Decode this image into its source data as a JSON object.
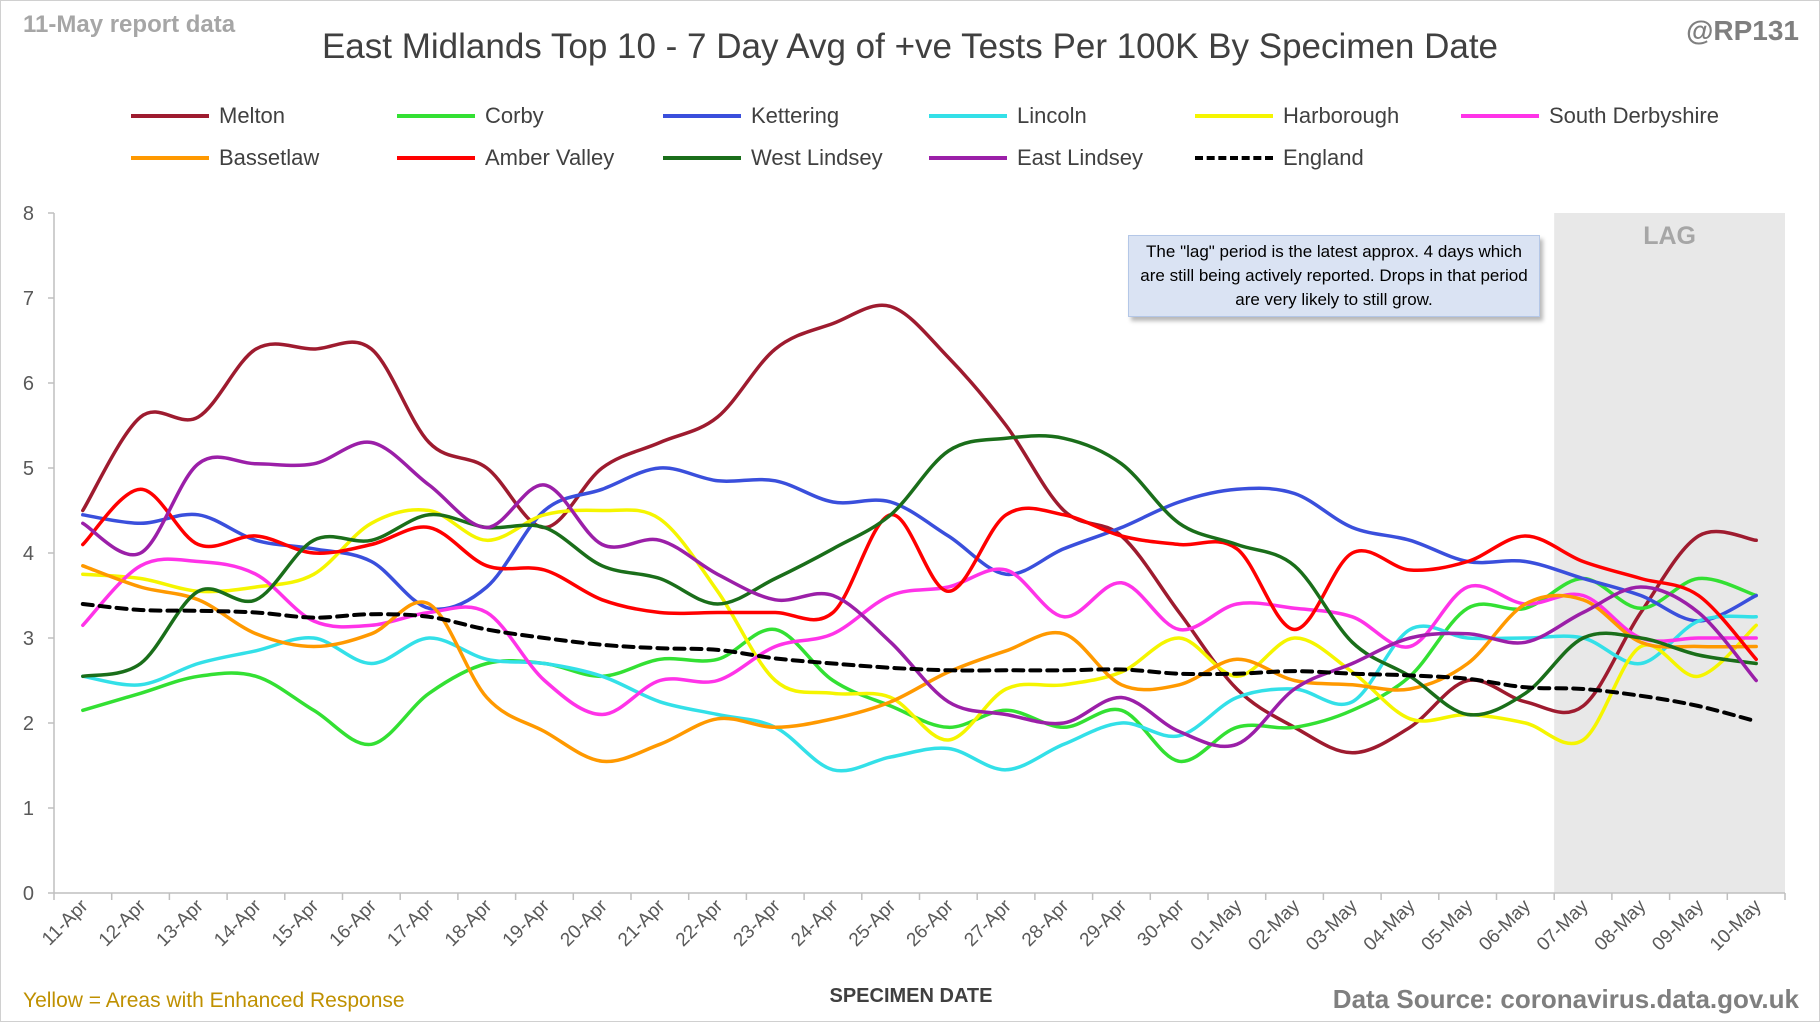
{
  "header": {
    "report_note": "11-May report data",
    "handle": "@RP131",
    "title": "East Midlands Top 10 - 7 Day Avg of +ve Tests Per 100K By Specimen Date"
  },
  "footer": {
    "enhanced_note": "Yellow = Areas with Enhanced Response",
    "source": "Data Source: coronavirus.data.gov.uk"
  },
  "annotation": {
    "text": "The \"lag\" period is the latest approx. 4 days which are still being actively reported. Drops in that period are very likely to still grow."
  },
  "chart_data": {
    "type": "line",
    "title": "East Midlands Top 10 - 7 Day Avg of +ve Tests Per 100K By Specimen Date",
    "xlabel": "SPECIMEN DATE",
    "ylabel": "",
    "ylim": [
      0,
      8
    ],
    "yticks": [
      "0",
      "1",
      "2",
      "3",
      "4",
      "5",
      "6",
      "7",
      "8"
    ],
    "grid": false,
    "legend_position": "top",
    "lag_region": {
      "label": "LAG",
      "from": "07-May",
      "to": "10-May",
      "color": "#e8e8e8"
    },
    "categories": [
      "11-Apr",
      "12-Apr",
      "13-Apr",
      "14-Apr",
      "15-Apr",
      "16-Apr",
      "17-Apr",
      "18-Apr",
      "19-Apr",
      "20-Apr",
      "21-Apr",
      "22-Apr",
      "23-Apr",
      "24-Apr",
      "25-Apr",
      "26-Apr",
      "27-Apr",
      "28-Apr",
      "29-Apr",
      "30-Apr",
      "01-May",
      "02-May",
      "03-May",
      "04-May",
      "05-May",
      "06-May",
      "07-May",
      "08-May",
      "09-May",
      "10-May"
    ],
    "series": [
      {
        "name": "Melton",
        "color": "#9e1b2f",
        "dash": false,
        "values": [
          4.5,
          5.6,
          5.6,
          6.4,
          6.4,
          6.4,
          5.3,
          5.0,
          4.3,
          5.0,
          5.3,
          5.6,
          6.4,
          6.7,
          6.9,
          6.3,
          5.5,
          4.5,
          4.2,
          3.3,
          2.4,
          1.95,
          1.65,
          1.95,
          2.5,
          2.25,
          2.2,
          3.3,
          4.2,
          4.15
        ]
      },
      {
        "name": "Corby",
        "color": "#33e033",
        "dash": false,
        "values": [
          2.15,
          2.35,
          2.55,
          2.55,
          2.15,
          1.75,
          2.35,
          2.7,
          2.7,
          2.55,
          2.75,
          2.75,
          3.1,
          2.5,
          2.2,
          1.95,
          2.15,
          1.95,
          2.15,
          1.55,
          1.95,
          1.95,
          2.15,
          2.55,
          3.35,
          3.35,
          3.7,
          3.35,
          3.7,
          3.5
        ]
      },
      {
        "name": "Kettering",
        "color": "#3a4fdc",
        "dash": false,
        "values": [
          4.45,
          4.35,
          4.45,
          4.15,
          4.05,
          3.9,
          3.35,
          3.6,
          4.5,
          4.75,
          5.0,
          4.85,
          4.85,
          4.6,
          4.6,
          4.2,
          3.75,
          4.05,
          4.3,
          4.6,
          4.75,
          4.7,
          4.3,
          4.15,
          3.9,
          3.9,
          3.7,
          3.5,
          3.2,
          3.5
        ]
      },
      {
        "name": "Lincoln",
        "color": "#33e0e8",
        "dash": false,
        "values": [
          2.55,
          2.45,
          2.7,
          2.85,
          3.0,
          2.7,
          3.0,
          2.75,
          2.7,
          2.55,
          2.25,
          2.1,
          1.95,
          1.45,
          1.6,
          1.7,
          1.45,
          1.75,
          2.0,
          1.85,
          2.3,
          2.4,
          2.25,
          3.1,
          3.0,
          3.0,
          3.0,
          2.7,
          3.2,
          3.25
        ]
      },
      {
        "name": "Harborough",
        "color": "#f5f500",
        "dash": false,
        "values": [
          3.75,
          3.7,
          3.55,
          3.6,
          3.75,
          4.35,
          4.5,
          4.15,
          4.45,
          4.5,
          4.4,
          3.55,
          2.5,
          2.35,
          2.3,
          1.8,
          2.4,
          2.45,
          2.6,
          3.0,
          2.55,
          3.0,
          2.6,
          2.05,
          2.1,
          2.0,
          1.8,
          2.9,
          2.55,
          3.15
        ]
      },
      {
        "name": "South Derbyshire",
        "color": "#ff33e8",
        "dash": false,
        "values": [
          3.15,
          3.85,
          3.9,
          3.75,
          3.2,
          3.15,
          3.3,
          3.3,
          2.5,
          2.1,
          2.5,
          2.5,
          2.9,
          3.05,
          3.5,
          3.6,
          3.8,
          3.25,
          3.65,
          3.1,
          3.4,
          3.35,
          3.25,
          2.9,
          3.6,
          3.4,
          3.5,
          3.0,
          3.0,
          3.0
        ]
      },
      {
        "name": "Bassetlaw",
        "color": "#ff9900",
        "dash": false,
        "values": [
          3.85,
          3.6,
          3.45,
          3.05,
          2.9,
          3.05,
          3.4,
          2.3,
          1.9,
          1.55,
          1.75,
          2.05,
          1.95,
          2.05,
          2.25,
          2.6,
          2.85,
          3.05,
          2.45,
          2.45,
          2.75,
          2.5,
          2.45,
          2.4,
          2.7,
          3.4,
          3.45,
          2.95,
          2.9,
          2.9
        ]
      },
      {
        "name": "Amber Valley",
        "color": "#ff0000",
        "dash": false,
        "values": [
          4.1,
          4.75,
          4.1,
          4.2,
          4.0,
          4.1,
          4.3,
          3.85,
          3.8,
          3.45,
          3.3,
          3.3,
          3.3,
          3.3,
          4.45,
          3.55,
          4.45,
          4.45,
          4.2,
          4.1,
          4.05,
          3.1,
          4.0,
          3.8,
          3.9,
          4.2,
          3.9,
          3.7,
          3.5,
          2.75
        ]
      },
      {
        "name": "West Lindsey",
        "color": "#1a6e1a",
        "dash": false,
        "values": [
          2.55,
          2.7,
          3.55,
          3.45,
          4.15,
          4.15,
          4.45,
          4.3,
          4.3,
          3.85,
          3.7,
          3.4,
          3.7,
          4.05,
          4.45,
          5.2,
          5.35,
          5.35,
          5.05,
          4.35,
          4.1,
          3.85,
          2.95,
          2.55,
          2.1,
          2.35,
          3.0,
          3.0,
          2.8,
          2.7
        ]
      },
      {
        "name": "East Lindsey",
        "color": "#9b1fa8",
        "dash": false,
        "values": [
          4.35,
          4.0,
          5.05,
          5.05,
          5.05,
          5.3,
          4.8,
          4.3,
          4.8,
          4.1,
          4.15,
          3.75,
          3.45,
          3.5,
          2.95,
          2.25,
          2.1,
          2.0,
          2.3,
          1.9,
          1.75,
          2.4,
          2.7,
          3.0,
          3.05,
          2.95,
          3.3,
          3.6,
          3.3,
          2.5
        ]
      },
      {
        "name": "England",
        "color": "#000000",
        "dash": true,
        "values": [
          3.4,
          3.33,
          3.32,
          3.3,
          3.24,
          3.28,
          3.25,
          3.1,
          3.0,
          2.92,
          2.88,
          2.86,
          2.76,
          2.7,
          2.65,
          2.62,
          2.62,
          2.62,
          2.63,
          2.58,
          2.58,
          2.61,
          2.58,
          2.56,
          2.52,
          2.42,
          2.4,
          2.32,
          2.2,
          2.02
        ]
      }
    ]
  }
}
